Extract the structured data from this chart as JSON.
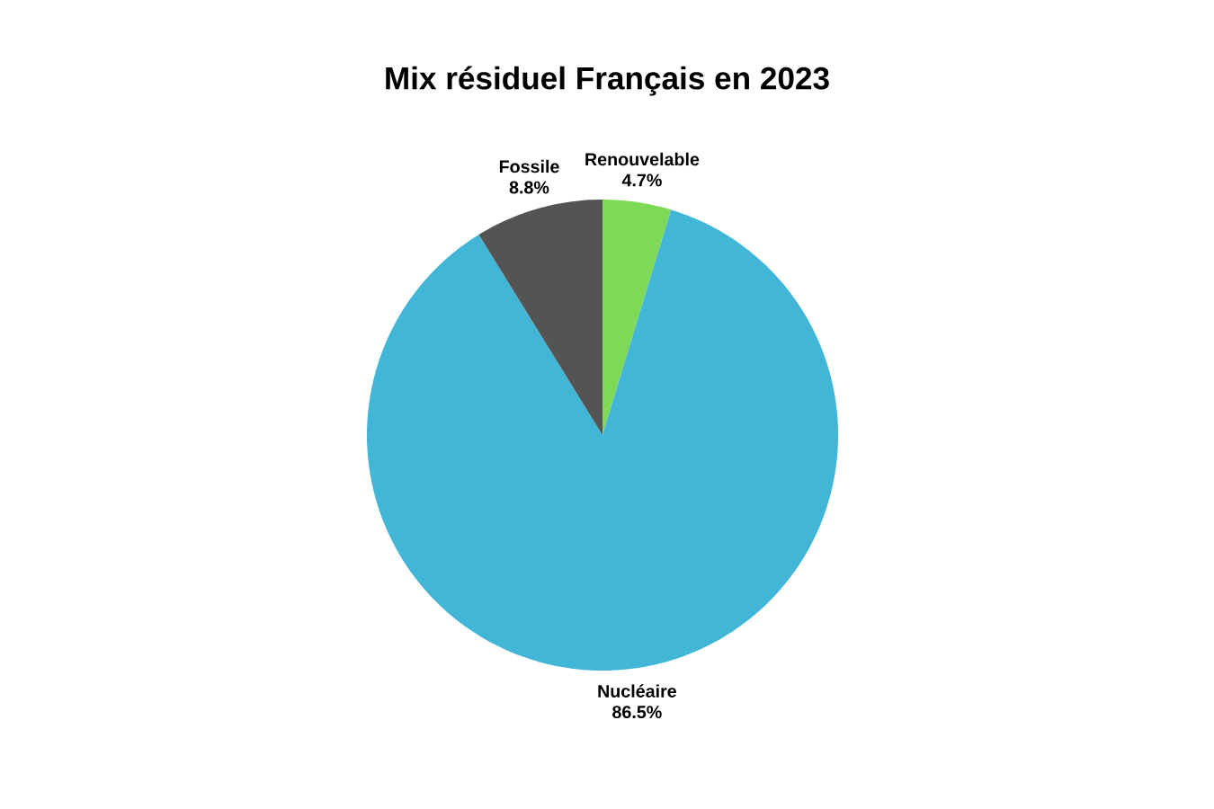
{
  "chart_data": {
    "type": "pie",
    "title": "Mix résiduel Français en 2023",
    "categories": [
      "Renouvelable",
      "Nucléaire",
      "Fossile"
    ],
    "values": [
      4.7,
      86.5,
      8.8
    ],
    "colors": [
      "#7ed957",
      "#41b6d6",
      "#545454"
    ],
    "value_labels": [
      "4.7%",
      "86.5%",
      "8.8%"
    ]
  }
}
